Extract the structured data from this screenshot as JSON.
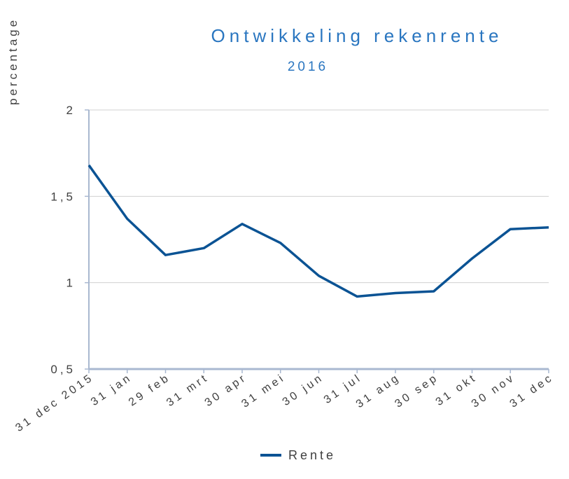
{
  "chart_data": {
    "type": "line",
    "title": "Ontwikkeling rekenrente",
    "subtitle": "2016",
    "y_label": "percentage",
    "categories": [
      "31 dec 2015",
      "31 jan",
      "29 feb",
      "31 mrt",
      "30 apr",
      "31 mei",
      "30 jun",
      "31 jul",
      "31 aug",
      "30 sep",
      "31 okt",
      "30 nov",
      "31 dec"
    ],
    "series": [
      {
        "name": "Rente",
        "color": "#0b5394",
        "values": [
          1.68,
          1.37,
          1.16,
          1.2,
          1.34,
          1.23,
          1.04,
          0.92,
          0.94,
          0.95,
          1.14,
          1.31,
          1.32
        ]
      }
    ],
    "ylim": [
      0.5,
      2
    ],
    "yticks": [
      {
        "value": 0.5,
        "label": "0,5"
      },
      1,
      {
        "value": 1.5,
        "label": "1,5"
      },
      2
    ],
    "grid": true,
    "legend": "bottom"
  }
}
